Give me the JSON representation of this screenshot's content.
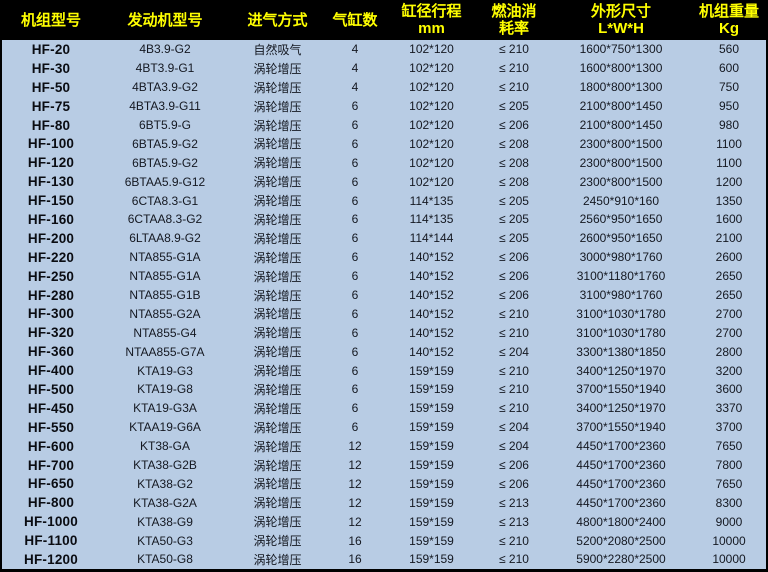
{
  "colors": {
    "header_background": "#000000",
    "header_text": "#FFFF00",
    "body_background": "#B8CCE4",
    "body_text": "#141821",
    "border": "#000000"
  },
  "table": {
    "columns": [
      {
        "key": "model",
        "label_lines": [
          "机组型号"
        ]
      },
      {
        "key": "engine",
        "label_lines": [
          "发动机型号"
        ]
      },
      {
        "key": "intake",
        "label_lines": [
          "进气方式"
        ]
      },
      {
        "key": "cylinders",
        "label_lines": [
          "气缸数"
        ]
      },
      {
        "key": "bore-stroke",
        "label_lines": [
          "缸径行程",
          "mm"
        ]
      },
      {
        "key": "fuel-rate",
        "label_lines": [
          "燃油消",
          "耗率"
        ]
      },
      {
        "key": "dimensions",
        "label_lines": [
          "外形尺寸",
          "L*W*H"
        ]
      },
      {
        "key": "weight",
        "label_lines": [
          "机组重量",
          "Kg"
        ]
      }
    ],
    "rows": [
      [
        "HF-20",
        "4B3.9-G2",
        "自然吸气",
        "4",
        "102*120",
        "≤ 210",
        "1600*750*1300",
        "560"
      ],
      [
        "HF-30",
        "4BT3.9-G1",
        "涡轮增压",
        "4",
        "102*120",
        "≤ 210",
        "1600*800*1300",
        "600"
      ],
      [
        "HF-50",
        "4BTA3.9-G2",
        "涡轮增压",
        "4",
        "102*120",
        "≤ 210",
        "1800*800*1300",
        "750"
      ],
      [
        "HF-75",
        "4BTA3.9-G11",
        "涡轮增压",
        "6",
        "102*120",
        "≤ 205",
        "2100*800*1450",
        "950"
      ],
      [
        "HF-80",
        "6BT5.9-G",
        "涡轮增压",
        "6",
        "102*120",
        "≤ 206",
        "2100*800*1450",
        "980"
      ],
      [
        "HF-100",
        "6BTA5.9-G2",
        "涡轮增压",
        "6",
        "102*120",
        "≤ 208",
        "2300*800*1500",
        "1100"
      ],
      [
        "HF-120",
        "6BTA5.9-G2",
        "涡轮增压",
        "6",
        "102*120",
        "≤ 208",
        "2300*800*1500",
        "1100"
      ],
      [
        "HF-130",
        "6BTAA5.9-G12",
        "涡轮增压",
        "6",
        "102*120",
        "≤ 208",
        "2300*800*1500",
        "1200"
      ],
      [
        "HF-150",
        "6CTA8.3-G1",
        "涡轮增压",
        "6",
        "114*135",
        "≤ 205",
        "2450*910*160",
        "1350"
      ],
      [
        "HF-160",
        "6CTAA8.3-G2",
        "涡轮增压",
        "6",
        "114*135",
        "≤ 205",
        "2560*950*1650",
        "1600"
      ],
      [
        "HF-200",
        "6LTAA8.9-G2",
        "涡轮增压",
        "6",
        "114*144",
        "≤ 205",
        "2600*950*1650",
        "2100"
      ],
      [
        "HF-220",
        "NTA855-G1A",
        "涡轮增压",
        "6",
        "140*152",
        "≤ 206",
        "3000*980*1760",
        "2600"
      ],
      [
        "HF-250",
        "NTA855-G1A",
        "涡轮增压",
        "6",
        "140*152",
        "≤ 206",
        "3100*1180*1760",
        "2650"
      ],
      [
        "HF-280",
        "NTA855-G1B",
        "涡轮增压",
        "6",
        "140*152",
        "≤ 206",
        "3100*980*1760",
        "2650"
      ],
      [
        "HF-300",
        "NTA855-G2A",
        "涡轮增压",
        "6",
        "140*152",
        "≤ 210",
        "3100*1030*1780",
        "2700"
      ],
      [
        "HF-320",
        "NTA855-G4",
        "涡轮增压",
        "6",
        "140*152",
        "≤ 210",
        "3100*1030*1780",
        "2700"
      ],
      [
        "HF-360",
        "NTAA855-G7A",
        "涡轮增压",
        "6",
        "140*152",
        "≤ 204",
        "3300*1380*1850",
        "2800"
      ],
      [
        "HF-400",
        "KTA19-G3",
        "涡轮增压",
        "6",
        "159*159",
        "≤ 210",
        "3400*1250*1970",
        "3200"
      ],
      [
        "HF-500",
        "KTA19-G8",
        "涡轮增压",
        "6",
        "159*159",
        "≤ 210",
        "3700*1550*1940",
        "3600"
      ],
      [
        "HF-450",
        "KTA19-G3A",
        "涡轮增压",
        "6",
        "159*159",
        "≤ 210",
        "3400*1250*1970",
        "3370"
      ],
      [
        "HF-550",
        "KTAA19-G6A",
        "涡轮增压",
        "6",
        "159*159",
        "≤ 204",
        "3700*1550*1940",
        "3700"
      ],
      [
        "HF-600",
        "KT38-GA",
        "涡轮增压",
        "12",
        "159*159",
        "≤ 204",
        "4450*1700*2360",
        "7650"
      ],
      [
        "HF-700",
        "KTA38-G2B",
        "涡轮增压",
        "12",
        "159*159",
        "≤ 206",
        "4450*1700*2360",
        "7800"
      ],
      [
        "HF-650",
        "KTA38-G2",
        "涡轮增压",
        "12",
        "159*159",
        "≤ 206",
        "4450*1700*2360",
        "7650"
      ],
      [
        "HF-800",
        "KTA38-G2A",
        "涡轮增压",
        "12",
        "159*159",
        "≤ 213",
        "4450*1700*2360",
        "8300"
      ],
      [
        "HF-1000",
        "KTA38-G9",
        "涡轮增压",
        "12",
        "159*159",
        "≤ 213",
        "4800*1800*2400",
        "9000"
      ],
      [
        "HF-1100",
        "KTA50-G3",
        "涡轮增压",
        "16",
        "159*159",
        "≤ 210",
        "5200*2080*2500",
        "10000"
      ],
      [
        "HF-1200",
        "KTA50-G8",
        "涡轮增压",
        "16",
        "159*159",
        "≤ 210",
        "5900*2280*2500",
        "10000"
      ]
    ]
  }
}
